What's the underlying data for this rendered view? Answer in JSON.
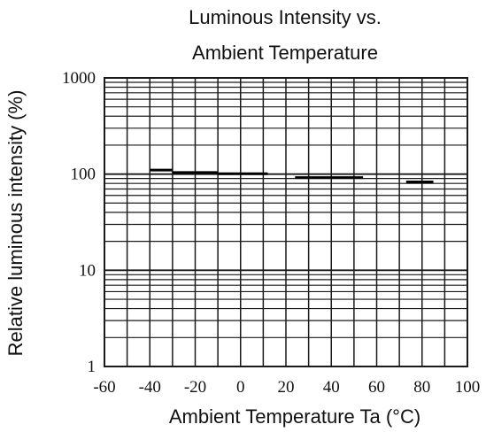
{
  "chart_data": {
    "type": "line",
    "title_lines": [
      "Luminous Intensity vs.",
      "Ambient Temperature"
    ],
    "xlabel": "Ambient Temperature Ta (°C)",
    "ylabel": "Relative luminous intensity (%)",
    "xlim": [
      -60,
      100
    ],
    "ylim": [
      1,
      1000
    ],
    "yscale": "log",
    "x_ticks": [
      -60,
      -40,
      -20,
      0,
      20,
      40,
      60,
      80,
      100
    ],
    "x_tick_labels": [
      "-60",
      "-40",
      "-20",
      "0",
      "20",
      "40",
      "60",
      "80",
      "100"
    ],
    "y_ticks": [
      1,
      10,
      100,
      1000
    ],
    "y_tick_labels": [
      "1",
      "10",
      "100",
      "1000"
    ],
    "grid": true,
    "series": [
      {
        "segments": [
          {
            "x": [
              -40,
              -30
            ],
            "y": [
              110,
              110
            ]
          },
          {
            "x": [
              -30,
              -10
            ],
            "y": [
              104,
              104
            ]
          },
          {
            "x": [
              -10,
              12
            ],
            "y": [
              101,
              101
            ]
          },
          {
            "x": [
              24,
              54
            ],
            "y": [
              92,
              92
            ]
          },
          {
            "x": [
              73,
              85
            ],
            "y": [
              83,
              83
            ]
          }
        ]
      }
    ]
  },
  "colors": {
    "grid": "#1a1a1a",
    "line": "#000000",
    "text": "#111111",
    "background": "#ffffff"
  }
}
